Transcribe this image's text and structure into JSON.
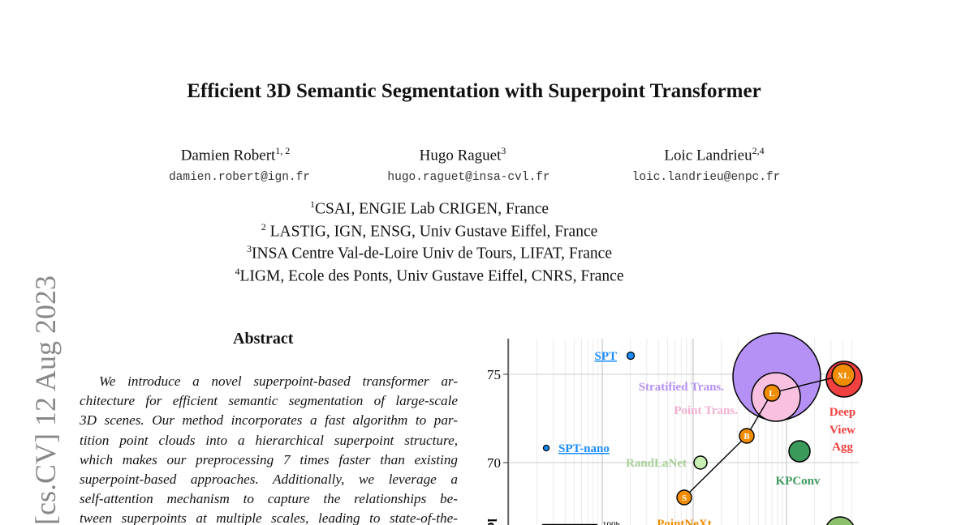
{
  "title": "Efficient 3D Semantic Segmentation with Superpoint Transformer",
  "authors": [
    {
      "name": "Damien Robert",
      "sup": "1, 2",
      "email": "damien.robert@ign.fr"
    },
    {
      "name": "Hugo Raguet",
      "sup": "3",
      "email": "hugo.raguet@insa-cvl.fr"
    },
    {
      "name": "Loic Landrieu",
      "sup": "2,4",
      "email": "loic.landrieu@enpc.fr"
    }
  ],
  "affiliations": [
    {
      "sup": "1",
      "text": "CSAI, ENGIE Lab CRIGEN, France"
    },
    {
      "sup": "2",
      "text": " LASTIG, IGN, ENSG, Univ Gustave Eiffel, France"
    },
    {
      "sup": "3",
      "text": "INSA Centre Val-de-Loire Univ de Tours, LIFAT, France"
    },
    {
      "sup": "4",
      "text": "LIGM, Ecole des Ponts, Univ Gustave Eiffel, CNRS, France"
    }
  ],
  "arxiv_stamp": "[cs.CV]  12 Aug 2023",
  "abstract": {
    "heading": "Abstract",
    "lines": [
      "We introduce a novel superpoint-based transformer ar-",
      "chitecture for efficient semantic segmentation of large-scale",
      "3D scenes. Our method incorporates a fast algorithm to par-",
      "tition point clouds into a hierarchical superpoint structure,",
      "which makes our preprocessing 7 times faster than existing",
      "superpoint-based approaches. Additionally, we leverage a",
      "self-attention mechanism to capture the relationships be-",
      "tween superpoints at multiple scales, leading to state-of-the-"
    ]
  },
  "chart_data": {
    "type": "scatter",
    "yticks": [
      "75",
      "70"
    ],
    "y_partial_label": "ld",
    "size_legend": "100h",
    "colors": {
      "spt": "#1a8cff",
      "stratified": "#b591f5",
      "point_trans": "#f9c0df",
      "pointnext": "#f08c00",
      "dva": "#f04040",
      "randlanet": "#c8f0b4",
      "kpconv": "#3a9a5a"
    },
    "points": [
      {
        "label": "SPT",
        "y": 76.0
      },
      {
        "label": "SPT-nano",
        "y": 70.8
      },
      {
        "label": "Stratified Trans.",
        "y": 74.8
      },
      {
        "label": "Point Trans.",
        "y": 73.5
      },
      {
        "label": "Deep",
        "label2": "View",
        "label3": "Agg",
        "y": 74.6
      },
      {
        "label": "RandLaNet",
        "y": 70.0
      },
      {
        "label": "KPConv",
        "y": 70.6
      },
      {
        "label": "PointNeXt",
        "y": null,
        "markers": [
          "S",
          "B",
          "L",
          "XL"
        ],
        "ys": [
          68.0,
          71.5,
          73.9,
          74.8
        ]
      }
    ]
  }
}
